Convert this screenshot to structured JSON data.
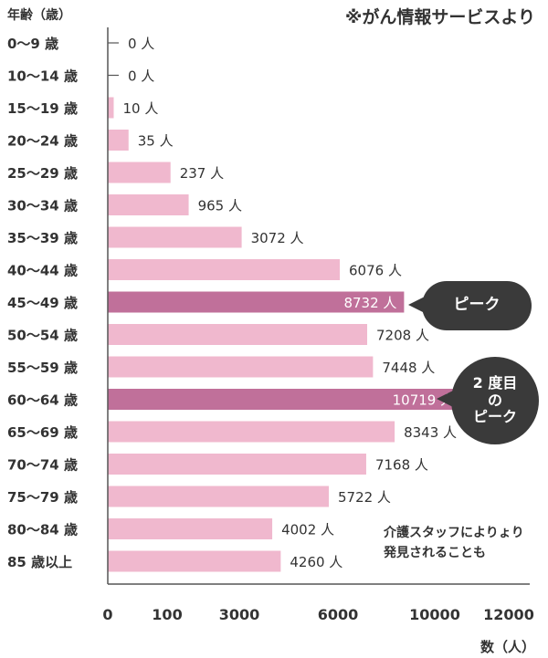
{
  "header": {
    "ylabel": "年齢（歳）",
    "source": "※がん情報サービスより"
  },
  "chart_data": {
    "type": "bar",
    "orientation": "horizontal",
    "ylabel": "年齢（歳）",
    "xlabel": "数（人）",
    "value_suffix": " 人",
    "categories": [
      "0〜9 歳",
      "10〜14 歳",
      "15〜19 歳",
      "20〜24 歳",
      "25〜29 歳",
      "30〜34 歳",
      "35〜39 歳",
      "40〜44 歳",
      "45〜49 歳",
      "50〜54 歳",
      "55〜59 歳",
      "60〜64 歳",
      "65〜69 歳",
      "70〜74 歳",
      "75〜79 歳",
      "80〜84 歳",
      "85 歳以上"
    ],
    "values": [
      0,
      0,
      10,
      35,
      237,
      965,
      3072,
      6076,
      8732,
      7208,
      7448,
      10719,
      8343,
      7168,
      5722,
      4002,
      4260
    ],
    "highlight_indices": [
      8,
      11
    ],
    "x_ticks": [
      "0",
      "100",
      "3000",
      "6000",
      "10000",
      "12000"
    ],
    "x_scale": "non-linear (piecewise) axis",
    "colors": {
      "bar": "#f0b8ce",
      "highlight": "#c0709a",
      "axis": "#555555"
    }
  },
  "callouts": {
    "peak": "ピーク",
    "second_peak": [
      "2 度目",
      "の",
      "ピーク"
    ],
    "note": [
      "介護スタッフによりょり",
      "発見されることも"
    ]
  }
}
